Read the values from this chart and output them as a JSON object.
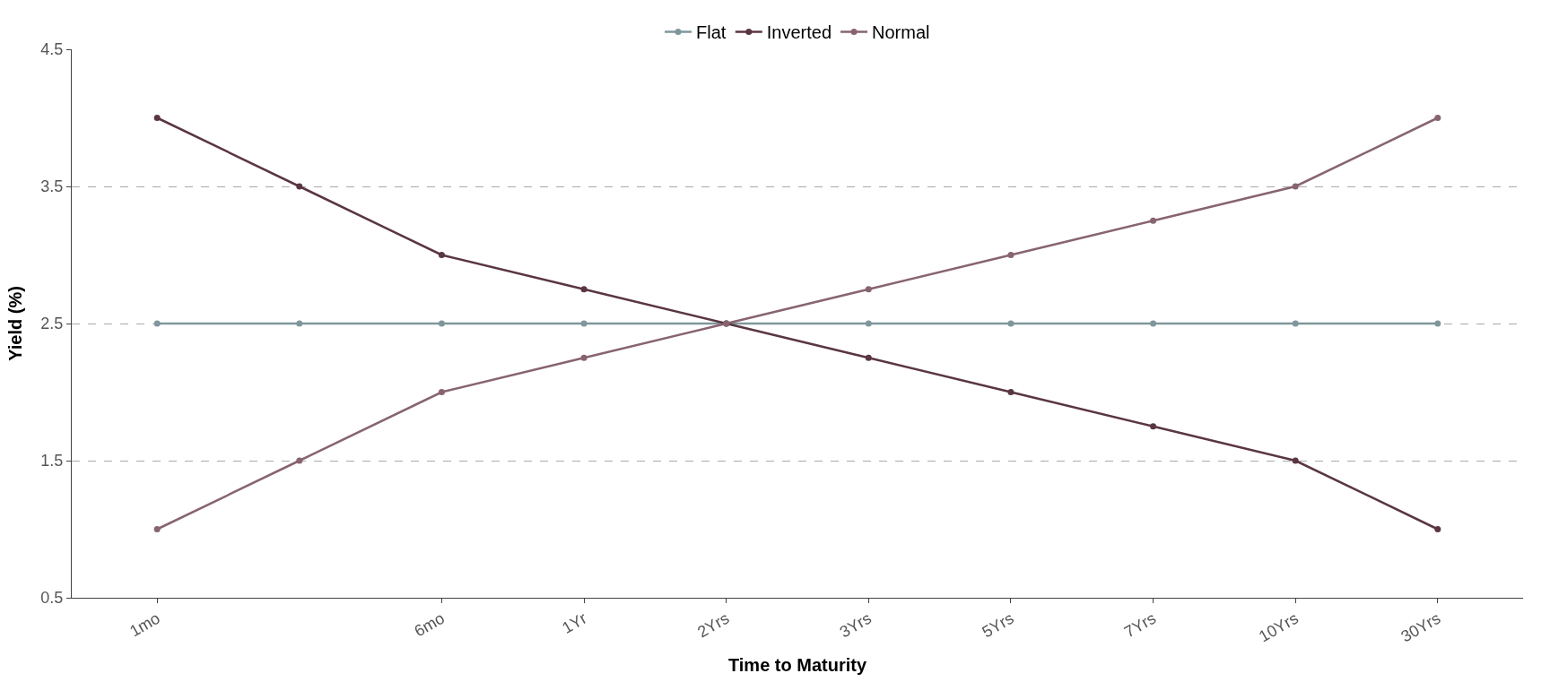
{
  "chart_data": {
    "type": "line",
    "xlabel": "Time to Maturity",
    "ylabel": "Yield (%)",
    "categories": [
      "1mo",
      null,
      "6mo",
      "1Yr",
      "2Yrs",
      "3Yrs",
      "5Yrs",
      "7Yrs",
      "10Yrs",
      "30Yrs"
    ],
    "ylim": [
      0.5,
      4.5
    ],
    "yticks": [
      0.5,
      1.5,
      2.5,
      3.5,
      4.5
    ],
    "grid": "y",
    "legend": "top",
    "marker": "circle",
    "line_style": "solid",
    "series": [
      {
        "name": "Flat",
        "color": "#7f979c",
        "values": [
          2.5,
          2.5,
          2.5,
          2.5,
          2.5,
          2.5,
          2.5,
          2.5,
          2.5,
          2.5
        ]
      },
      {
        "name": "Inverted",
        "color": "#5a3641",
        "values": [
          4,
          3.5,
          3,
          2.75,
          2.5,
          2.25,
          2,
          1.75,
          1.5,
          1
        ]
      },
      {
        "name": "Normal",
        "color": "#876470",
        "values": [
          1,
          1.5,
          2,
          2.25,
          2.5,
          2.75,
          3,
          3.25,
          3.5,
          4
        ]
      }
    ]
  }
}
